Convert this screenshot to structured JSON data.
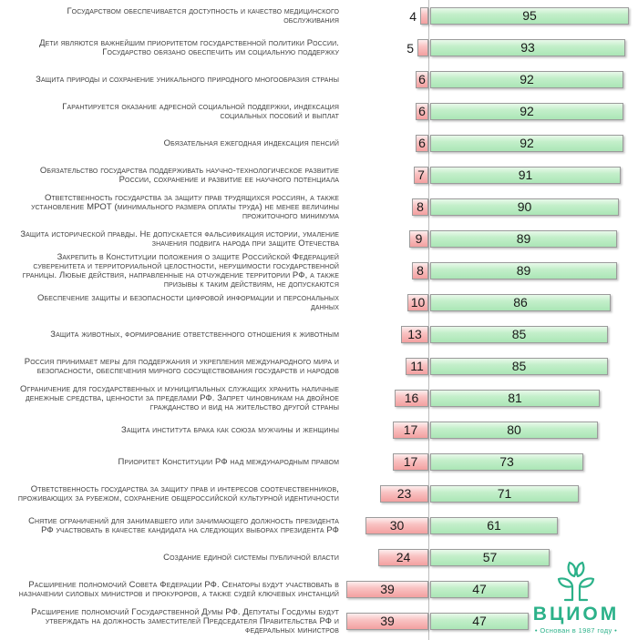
{
  "chart_data": {
    "type": "bar",
    "orientation": "horizontal_diverging",
    "value_labels_shown": true,
    "categories": [
      "Государством обеспечивается доступность и качество медицинского обслуживания",
      "Дети являются важнейшим приоритетом государственной политики России. Государство обязано обеспечить им социальную поддержку",
      "Защита природы и сохранение уникального природного многообразия страны",
      "Гарантируется оказание адресной социальной поддержки, индексация социальных пособий и выплат",
      "Обязательная ежегодная индексация пенсий",
      "Обязательство государства поддерживать научно-технологическое развитие России, сохранение и развитие ее научного потенциала",
      "Ответственность государства за защиту прав трудящихся россиян, а также установление МРОТ (минимального размера оплаты труда) не менее величины прожиточного минимума",
      "Защита исторической правды. Не допускается фальсификация истории, умаление значения подвига народа при защите Отечества",
      "Закрепить в Конституции положения о защите Российской Федерацией суверенитета и территориальной целостности, нерушимости государственной границы. Любые действия, направленные на отчуждение территории РФ, а также призывы к таким действиям, не допускаются",
      "Обеспечение защиты и безопасности цифровой информации и персональных данных",
      "Защита животных, формирование ответственного отношения к животным",
      "Россия принимает меры для поддержания и укрепления международного мира и безопасности, обеспечения мирного сосуществования государств и народов",
      "Ограничение для государственных и муниципальных служащих хранить наличные денежные средства, ценности за пределами РФ. Запрет чиновникам на двойное гражданство и вид на жительство другой страны",
      "Защита института брака как союза мужчины и женщины",
      "Приоритет Конституции РФ над международным правом",
      "Ответственность государства за защиту прав и интересов соотечественников, проживающих за рубежом, сохранение общероссийской культурной идентичности",
      "Снятие ограничений для занимавшего или занимающего должность президента РФ участвовать в качестве кандидата на следующих выборах президента РФ",
      "Создание единой системы публичной власти",
      "Расширение полномочий Совета Федерации РФ. Сенаторы будут участвовать в назначении силовых министров и прокуроров, а также судей ключевых инстанций",
      "Расширение полномочий Государственной Думы РФ. Депутаты Госдумы будут утверждать на должность заместителей Председателя Правительства РФ и федеральных министров"
    ],
    "series": [
      {
        "name": "left_red_values",
        "values": [
          4,
          5,
          6,
          6,
          6,
          7,
          8,
          9,
          8,
          10,
          13,
          11,
          16,
          17,
          17,
          23,
          30,
          24,
          39,
          39
        ]
      },
      {
        "name": "right_green_values",
        "values": [
          95,
          93,
          92,
          92,
          92,
          91,
          90,
          89,
          89,
          86,
          85,
          85,
          81,
          80,
          73,
          71,
          61,
          57,
          47,
          47
        ]
      }
    ],
    "colors": {
      "red_bar": "#f3a0a0",
      "green_bar": "#b9ecc2",
      "bar_border": "#9b9b9b",
      "axis_line": "#bdbdbd",
      "label_text": "#3f3f3f",
      "value_text": "#1a1a1a",
      "logo_teal": "#2bb189"
    }
  },
  "logo": {
    "wordmark": "ВЦИОМ",
    "tagline": "• Основан в 1987 году •"
  }
}
